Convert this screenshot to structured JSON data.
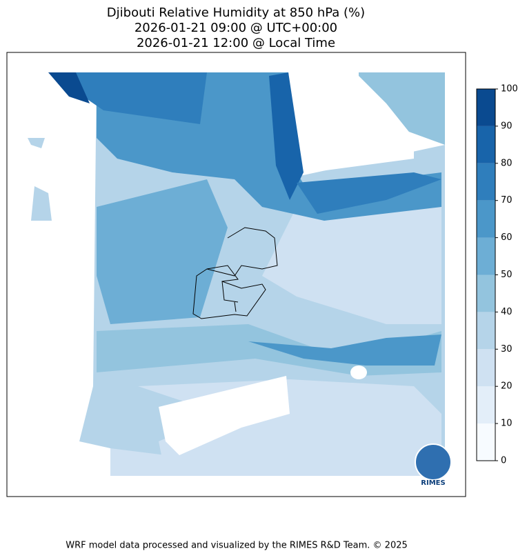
{
  "header": {
    "title_lines": [
      "Djibouti Relative Humidity at 850 hPa (%)",
      "2026-01-21 09:00 @ UTC+00:00",
      "2026-01-21 12:00 @ Local Time"
    ]
  },
  "colorbar": {
    "levels": [
      0,
      10,
      20,
      30,
      40,
      50,
      60,
      70,
      80,
      90,
      100
    ],
    "colors": [
      "#f7fbff",
      "#e3eef9",
      "#cfe1f2",
      "#b5d4e9",
      "#93c4de",
      "#6daed5",
      "#4b97c9",
      "#2f7ebc",
      "#1864aa",
      "#0a4a90"
    ],
    "ticks": [
      0,
      10,
      20,
      30,
      40,
      50,
      60,
      70,
      80,
      90,
      100
    ]
  },
  "logo": {
    "text": "RIMES"
  },
  "footer": {
    "text": "WRF model data processed and visualized by the RIMES R&D Team. © 2025"
  }
}
